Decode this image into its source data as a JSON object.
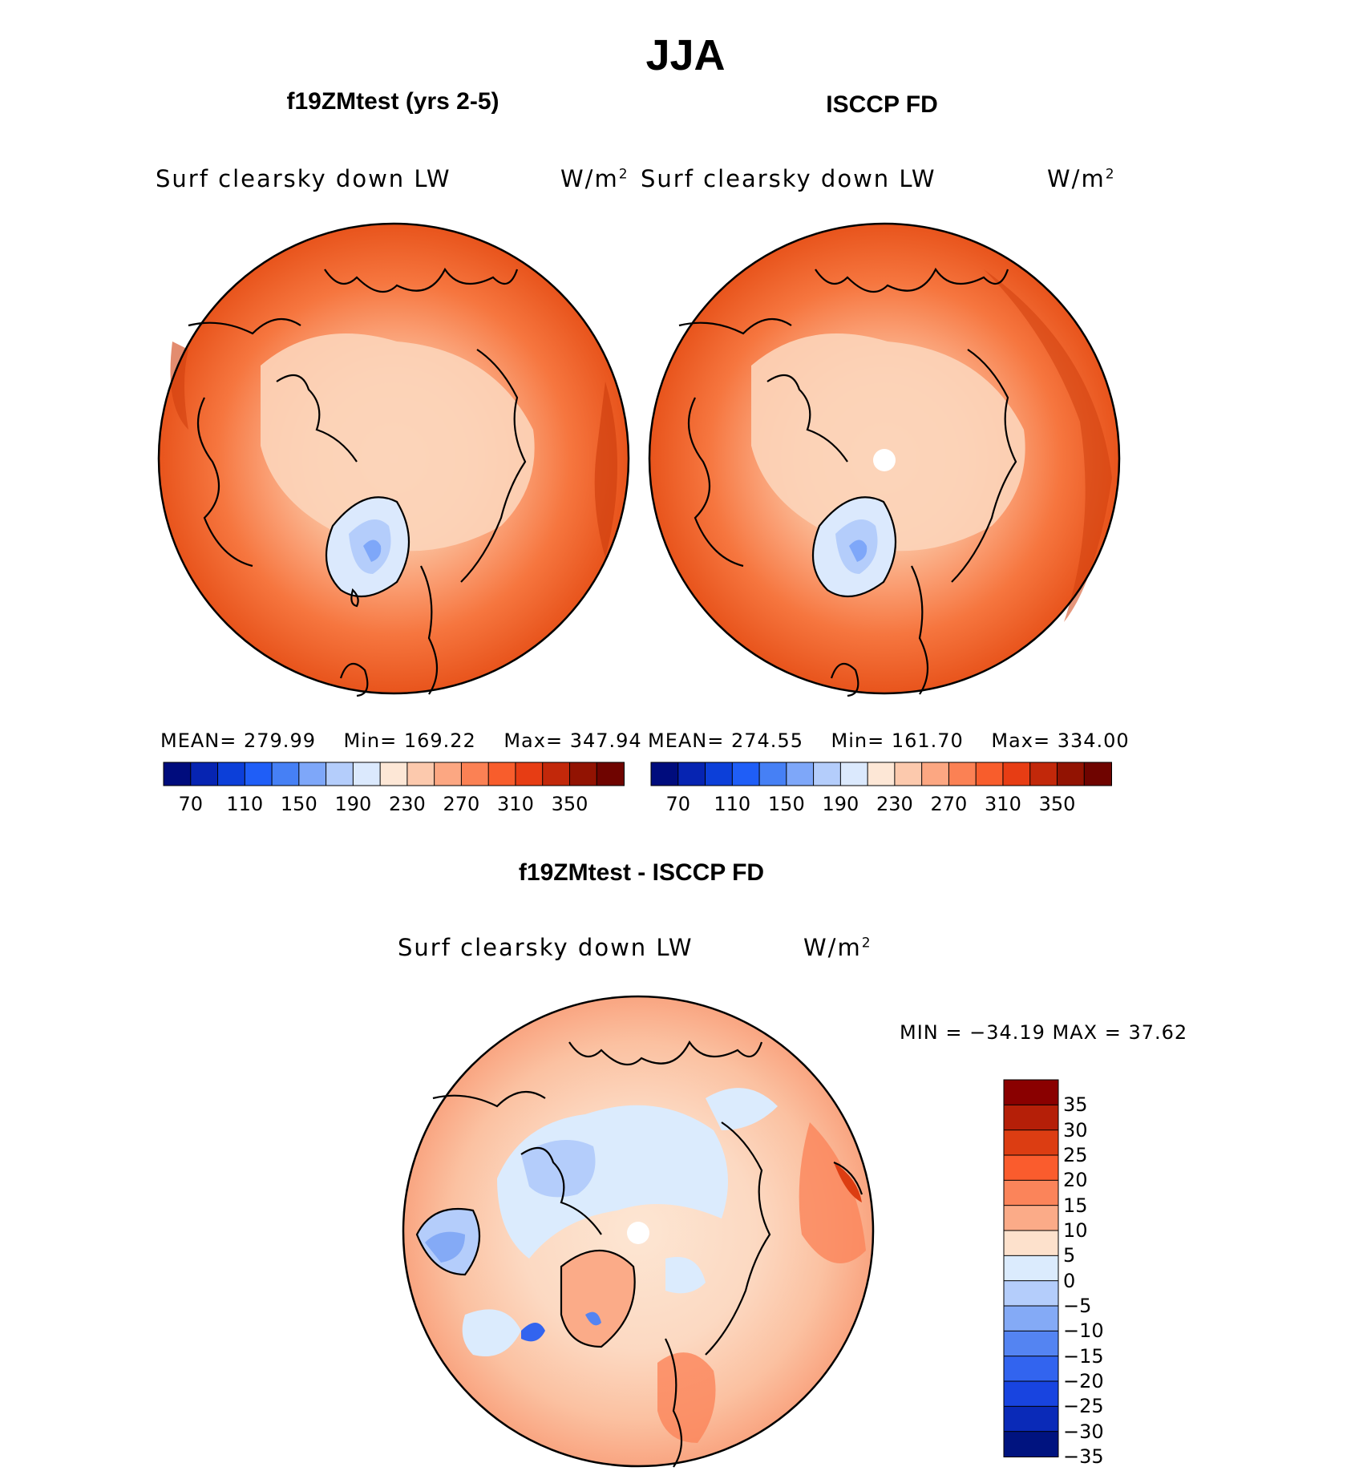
{
  "figure": {
    "season": "JJA",
    "variable_label": "Surf clearsky down LW",
    "units_base": "W/m",
    "units_exp": "2"
  },
  "panels": {
    "model": {
      "title": "f19ZMtest (yrs 2-5)",
      "mean_label": "MEAN=",
      "mean": "279.99",
      "min_label": "Min=",
      "min": "169.22",
      "max_label": "Max=",
      "max": "347.94"
    },
    "obs": {
      "title": "ISCCP FD",
      "mean_label": "MEAN=",
      "mean": "274.55",
      "min_label": "Min=",
      "min": "161.70",
      "max_label": "Max=",
      "max": "334.00"
    },
    "diff": {
      "title": "f19ZMtest - ISCCP FD",
      "min_max_text": "MIN = −34.19 MAX =  37.62"
    }
  },
  "colorbars": {
    "absolute": {
      "colors": [
        "#000c7d",
        "#0624b2",
        "#0c3fd9",
        "#1f5ef7",
        "#4680f5",
        "#7ea7f9",
        "#b4cdfb",
        "#dbe9fd",
        "#fde7d6",
        "#fcc9ad",
        "#fca782",
        "#fb8154",
        "#f85d2c",
        "#e73d14",
        "#c2280a",
        "#921302",
        "#6f0400"
      ],
      "ticks": [
        "70",
        "110",
        "150",
        "190",
        "230",
        "270",
        "310",
        "350"
      ]
    },
    "difference": {
      "colors": [
        "#8a0000",
        "#b51f08",
        "#dc3d12",
        "#fa5c2d",
        "#fb845a",
        "#fbab88",
        "#fde1cc",
        "#dbebfd",
        "#b4cdfb",
        "#84aaf6",
        "#5484f2",
        "#3264ef",
        "#1844e0",
        "#0a2ab8",
        "#00137f"
      ],
      "ticks": [
        "35",
        "30",
        "25",
        "20",
        "15",
        "10",
        "5",
        "0",
        "−5",
        "−10",
        "−15",
        "−20",
        "−25",
        "−30",
        "−35"
      ]
    }
  }
}
